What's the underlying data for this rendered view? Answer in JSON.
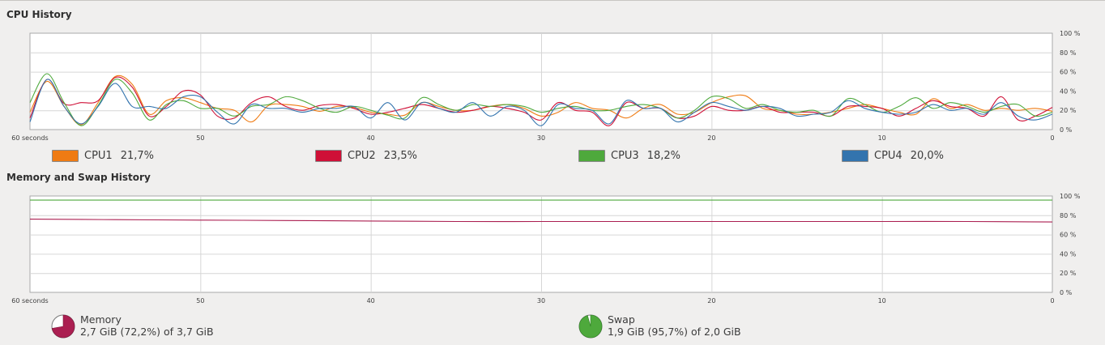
{
  "cpu_section": {
    "title": "CPU History",
    "x_ticks": [
      "60 seconds",
      "50",
      "40",
      "30",
      "20",
      "10",
      "0"
    ],
    "y_ticks": [
      "100 %",
      "80 %",
      "60 %",
      "40 %",
      "20 %",
      "0 %"
    ],
    "legend": [
      {
        "name": "CPU1",
        "value": "21,7%",
        "color": "#ef7b13"
      },
      {
        "name": "CPU2",
        "value": "23,5%",
        "color": "#cf1037"
      },
      {
        "name": "CPU3",
        "value": "18,2%",
        "color": "#4ea93c"
      },
      {
        "name": "CPU4",
        "value": "20,0%",
        "color": "#3374ae"
      }
    ]
  },
  "memory_section": {
    "title": "Memory and Swap History",
    "x_ticks": [
      "60 seconds",
      "50",
      "40",
      "30",
      "20",
      "10",
      "0"
    ],
    "y_ticks": [
      "100 %",
      "80 %",
      "60 %",
      "40 %",
      "20 %",
      "0 %"
    ],
    "memory": {
      "label": "Memory",
      "detail": "2,7 GiB (72,2%) of 3,7 GiB",
      "percent": 72.2,
      "color": "#ab1f51"
    },
    "swap": {
      "label": "Swap",
      "detail": "1,9 GiB (95,7%) of 2,0 GiB",
      "percent": 95.7,
      "color": "#4ea93c"
    }
  },
  "chart_data": [
    {
      "type": "line",
      "title": "CPU History",
      "xlabel": "",
      "ylabel": "",
      "x": [
        60,
        59,
        58,
        57,
        56,
        55,
        54,
        53,
        52,
        51,
        50,
        49,
        48,
        47,
        46,
        45,
        44,
        43,
        42,
        41,
        40,
        39,
        38,
        37,
        36,
        35,
        34,
        33,
        32,
        31,
        30,
        29,
        28,
        27,
        26,
        25,
        24,
        23,
        22,
        21,
        20,
        19,
        18,
        17,
        16,
        15,
        14,
        13,
        12,
        11,
        10,
        9,
        8,
        7,
        6,
        5,
        4,
        3,
        2,
        1,
        0
      ],
      "xlim": [
        60,
        0
      ],
      "ylim": [
        0,
        100
      ],
      "grid": true,
      "series": [
        {
          "name": "CPU1",
          "color": "#ef7b13",
          "values": [
            18,
            50,
            24,
            5,
            28,
            55,
            47,
            16,
            30,
            33,
            28,
            22,
            20,
            8,
            25,
            26,
            24,
            19,
            24,
            23,
            18,
            16,
            15,
            28,
            24,
            20,
            20,
            24,
            26,
            22,
            14,
            18,
            28,
            22,
            20,
            12,
            22,
            26,
            16,
            18,
            28,
            34,
            35,
            22,
            20,
            16,
            16,
            18,
            22,
            26,
            22,
            18,
            16,
            32,
            22,
            26,
            20,
            22,
            20,
            22,
            19
          ]
        },
        {
          "name": "CPU2",
          "color": "#cf1037",
          "values": [
            12,
            52,
            27,
            28,
            30,
            54,
            44,
            14,
            24,
            40,
            36,
            14,
            12,
            28,
            34,
            24,
            20,
            25,
            26,
            22,
            16,
            18,
            22,
            26,
            22,
            18,
            20,
            24,
            22,
            18,
            10,
            28,
            20,
            18,
            4,
            28,
            22,
            22,
            12,
            14,
            24,
            20,
            20,
            24,
            18,
            18,
            18,
            14,
            24,
            24,
            22,
            14,
            22,
            30,
            24,
            22,
            14,
            34,
            10,
            14,
            23
          ]
        },
        {
          "name": "CPU3",
          "color": "#4ea93c",
          "values": [
            28,
            58,
            28,
            4,
            25,
            52,
            38,
            10,
            26,
            30,
            22,
            22,
            14,
            24,
            26,
            34,
            30,
            22,
            18,
            24,
            20,
            15,
            12,
            33,
            26,
            20,
            26,
            24,
            26,
            24,
            18,
            22,
            24,
            20,
            20,
            24,
            26,
            22,
            12,
            20,
            34,
            32,
            22,
            26,
            20,
            18,
            20,
            14,
            32,
            26,
            18,
            24,
            33,
            22,
            28,
            24,
            18,
            24,
            26,
            14,
            18
          ]
        },
        {
          "name": "CPU4",
          "color": "#3374ae",
          "values": [
            8,
            52,
            24,
            6,
            24,
            48,
            24,
            24,
            22,
            34,
            34,
            18,
            6,
            26,
            22,
            22,
            18,
            22,
            22,
            24,
            12,
            28,
            10,
            28,
            22,
            18,
            28,
            14,
            24,
            20,
            4,
            26,
            22,
            20,
            6,
            30,
            22,
            22,
            8,
            18,
            28,
            24,
            20,
            24,
            22,
            14,
            16,
            18,
            30,
            22,
            18,
            16,
            18,
            26,
            20,
            22,
            16,
            28,
            14,
            10,
            16
          ]
        }
      ]
    },
    {
      "type": "line",
      "title": "Memory and Swap History",
      "xlabel": "",
      "ylabel": "",
      "x": [
        60,
        55,
        50,
        45,
        40,
        35,
        30,
        25,
        20,
        15,
        10,
        5,
        0
      ],
      "xlim": [
        60,
        0
      ],
      "ylim": [
        0,
        100
      ],
      "grid": true,
      "series": [
        {
          "name": "Memory",
          "color": "#ab1f51",
          "values": [
            76,
            75.5,
            75,
            74.5,
            74,
            73.5,
            73.5,
            73.5,
            73.5,
            73.5,
            73.5,
            73.5,
            73
          ]
        },
        {
          "name": "Swap",
          "color": "#4ea93c",
          "values": [
            95.7,
            95.7,
            95.7,
            95.7,
            95.7,
            95.7,
            95.7,
            95.7,
            95.7,
            95.7,
            95.7,
            95.7,
            95.7
          ]
        }
      ]
    }
  ]
}
